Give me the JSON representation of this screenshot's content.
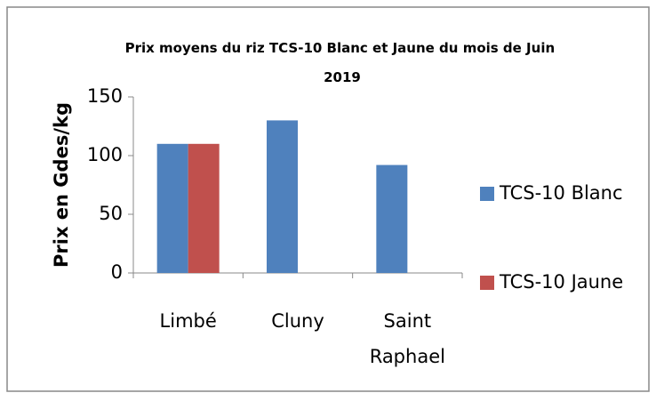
{
  "chart_data": {
    "type": "bar",
    "title": "Prix moyens du riz TCS-10 Blanc et Jaune  du mois de Juin 2019",
    "y_label": "Prix en Gdes/kg",
    "categories": [
      "Limbé",
      "Cluny",
      "Saint Raphael"
    ],
    "series": [
      {
        "name": "TCS-10 Blanc",
        "color": "#4f81bd",
        "values": [
          110,
          130,
          92
        ]
      },
      {
        "name": "TCS-10 Jaune",
        "color": "#c0504d",
        "values": [
          110,
          null,
          null
        ]
      }
    ],
    "ylim": [
      0,
      150
    ],
    "yticks": [
      0,
      50,
      100,
      150
    ],
    "grid": false,
    "legend": "right"
  }
}
